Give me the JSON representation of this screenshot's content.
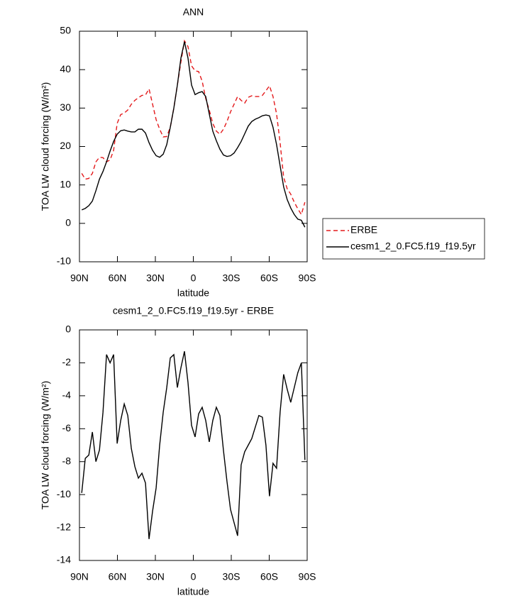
{
  "chart_data": [
    {
      "type": "line",
      "title": "ANN",
      "xlabel": "latitude",
      "ylabel": "TOA LW cloud forcing (W/m²)",
      "x": [
        88.2,
        85.4,
        82.6,
        79.8,
        77,
        74.2,
        71.4,
        68.6,
        65.8,
        63,
        60.2,
        57.4,
        54.6,
        51.8,
        49,
        46.2,
        43.4,
        40.6,
        37.8,
        35,
        32.2,
        29.4,
        26.6,
        23.8,
        21,
        18.2,
        15.4,
        12.6,
        9.8,
        7,
        4.2,
        1.4,
        -1.4,
        -4.2,
        -7,
        -9.8,
        -12.6,
        -15.4,
        -18.2,
        -21,
        -23.8,
        -26.6,
        -29.4,
        -32.2,
        -35,
        -37.8,
        -40.6,
        -43.4,
        -46.2,
        -49,
        -51.8,
        -54.6,
        -57.4,
        -60.2,
        -63,
        -65.8,
        -68.6,
        -71.4,
        -74.2,
        -77,
        -79.8,
        -82.6,
        -85.4,
        -88.2
      ],
      "series": [
        {
          "name": "ERBE",
          "color": "#e41a1c",
          "linestyle": "dashed",
          "values": [
            13,
            11.5,
            11.7,
            13,
            16,
            17.2,
            17.1,
            16,
            16.5,
            19,
            26,
            28.3,
            28.7,
            29.5,
            31,
            32,
            32.7,
            33.3,
            33.4,
            35,
            31,
            27,
            24.5,
            22.5,
            22.6,
            25,
            30,
            36,
            42,
            47.5,
            46,
            41,
            39.7,
            39.5,
            37,
            32.5,
            29.5,
            26,
            24,
            23.2,
            24.5,
            26.5,
            29,
            31,
            33,
            32,
            31.3,
            32.8,
            33.2,
            33,
            33,
            33.3,
            34.5,
            35.8,
            33,
            28.5,
            21,
            12,
            9,
            7.6,
            5.5,
            3.8,
            2.3,
            5.5
          ]
        },
        {
          "name": "cesm1_2_0.FC5.f19_f19.5yr",
          "color": "#000000",
          "linestyle": "solid",
          "values": [
            3.5,
            3.9,
            4.6,
            5.8,
            8.5,
            11.5,
            13.5,
            16,
            18.8,
            21.3,
            23.2,
            24.1,
            24.3,
            24,
            23.8,
            23.8,
            24.5,
            24.5,
            23.5,
            21,
            19,
            17.6,
            17.2,
            18,
            20.5,
            25,
            30,
            36,
            43,
            47.3,
            43,
            36,
            33.5,
            34,
            34.3,
            33,
            28.5,
            24,
            21.5,
            19.3,
            17.8,
            17.4,
            17.6,
            18.3,
            19.7,
            21.3,
            23.3,
            25.3,
            26.5,
            27.1,
            27.5,
            28,
            28.2,
            28,
            25,
            20.5,
            15,
            9.5,
            6.2,
            4,
            2.3,
            1.1,
            0.8,
            -1
          ]
        }
      ],
      "xlim": [
        90,
        -90
      ],
      "xticks": [
        {
          "value": 90,
          "label": "90N"
        },
        {
          "value": 60,
          "label": "60N"
        },
        {
          "value": 30,
          "label": "30N"
        },
        0,
        {
          "value": -30,
          "label": "30S"
        },
        {
          "value": -60,
          "label": "60S"
        },
        {
          "value": -90,
          "label": "90S"
        }
      ],
      "ylim": [
        -10,
        50
      ],
      "yticks": [
        -10,
        0,
        10,
        20,
        30,
        40,
        50
      ],
      "legend": "right"
    },
    {
      "type": "line",
      "title": "cesm1_2_0.FC5.f19_f19.5yr - ERBE",
      "xlabel": "latitude",
      "ylabel": "TOA LW cloud forcing (W/m²)",
      "x": [
        88.2,
        85.4,
        82.6,
        79.8,
        77,
        74.2,
        71.4,
        68.6,
        65.8,
        63,
        60.2,
        57.4,
        54.6,
        51.8,
        49,
        46.2,
        43.4,
        40.6,
        37.8,
        35,
        32.2,
        29.4,
        26.6,
        23.8,
        21,
        18.2,
        15.4,
        12.6,
        9.8,
        7,
        4.2,
        1.4,
        -1.4,
        -4.2,
        -7,
        -9.8,
        -12.6,
        -15.4,
        -18.2,
        -21,
        -23.8,
        -26.6,
        -29.4,
        -32.2,
        -35,
        -37.8,
        -40.6,
        -43.4,
        -46.2,
        -49,
        -51.8,
        -54.6,
        -57.4,
        -60.2,
        -63,
        -65.8,
        -68.6,
        -71.4,
        -74.2,
        -77,
        -79.8,
        -82.6,
        -85.4,
        -88.2
      ],
      "values": [
        -9.9,
        -7.8,
        -7.6,
        -6.2,
        -8,
        -7.3,
        -5,
        -1.5,
        -2,
        -1.5,
        -6.9,
        -5.5,
        -4.5,
        -5.2,
        -7.2,
        -8.3,
        -9,
        -8.7,
        -9.3,
        -12.7,
        -11,
        -9.6,
        -7,
        -5,
        -3.5,
        -1.7,
        -1.5,
        -3.5,
        -2.3,
        -1.3,
        -3.2,
        -5.8,
        -6.5,
        -5.1,
        -4.7,
        -5.5,
        -6.8,
        -5.5,
        -4.7,
        -5.2,
        -7.3,
        -9.2,
        -10.9,
        -11.7,
        -12.5,
        -8.2,
        -7.4,
        -7,
        -6.6,
        -5.9,
        -5.2,
        -5.3,
        -7,
        -10.1,
        -8.1,
        -8.4,
        -5,
        -2.7,
        -3.6,
        -4.4,
        -3.5,
        -2.6,
        -2,
        -7.9
      ],
      "color": "#000000",
      "xlim": [
        90,
        -90
      ],
      "xticks": [
        {
          "value": 90,
          "label": "90N"
        },
        {
          "value": 60,
          "label": "60N"
        },
        {
          "value": 30,
          "label": "30N"
        },
        0,
        {
          "value": -30,
          "label": "30S"
        },
        {
          "value": -60,
          "label": "60S"
        },
        {
          "value": -90,
          "label": "90S"
        }
      ],
      "ylim": [
        -14,
        0
      ],
      "yticks": [
        -14,
        -12,
        -10,
        -8,
        -6,
        -4,
        -2,
        0
      ]
    }
  ]
}
